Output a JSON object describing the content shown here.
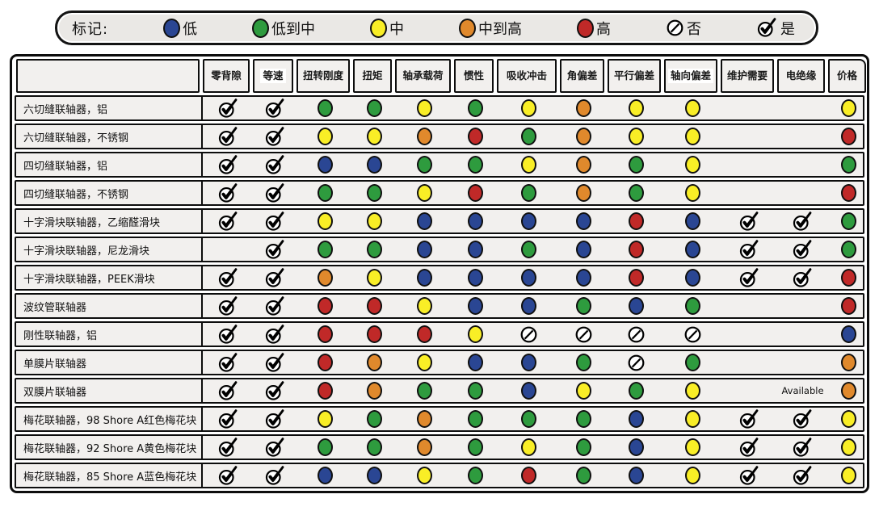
{
  "legend": {
    "title": "标记:",
    "items": [
      {
        "code": "low",
        "label": "低"
      },
      {
        "code": "low_med",
        "label": "低到中"
      },
      {
        "code": "med",
        "label": "中"
      },
      {
        "code": "med_high",
        "label": "中到高"
      },
      {
        "code": "high",
        "label": "高"
      },
      {
        "code": "no",
        "label": "否"
      },
      {
        "code": "yes",
        "label": "是"
      }
    ]
  },
  "colors": {
    "low": "#2a4693",
    "low_med": "#2e9b3e",
    "med": "#f9ee26",
    "med_high": "#e0892c",
    "high": "#c02928",
    "cell_bg": "#f2f0ee",
    "legend_bg": "#eae8e5",
    "border": "#000000"
  },
  "chart_data": {
    "type": "table",
    "value_legend": {
      "low": "低",
      "low_med": "低到中",
      "med": "中",
      "med_high": "中到高",
      "high": "高",
      "no": "否",
      "yes": "是"
    },
    "available_label": "Available",
    "columns": [
      {
        "label": "零背隙",
        "highlighted": false
      },
      {
        "label": "等速",
        "highlighted": true
      },
      {
        "label": "扭转刚度",
        "highlighted": false
      },
      {
        "label": "扭矩",
        "highlighted": false
      },
      {
        "label": "轴承载荷",
        "highlighted": false
      },
      {
        "label": "惯性",
        "highlighted": false
      },
      {
        "label": "吸收冲击",
        "highlighted": false
      },
      {
        "label": "角偏差",
        "highlighted": false
      },
      {
        "label": "平行偏差",
        "highlighted": false
      },
      {
        "label": "轴向偏差",
        "highlighted": true
      },
      {
        "label": "维护需要",
        "highlighted": false
      },
      {
        "label": "电绝缘",
        "highlighted": false
      },
      {
        "label": "价格",
        "highlighted": false
      }
    ],
    "rows": [
      {
        "label": "六切缝联轴器，铝",
        "values": [
          "yes",
          "yes",
          "low_med",
          "low_med",
          "med",
          "low_med",
          "med",
          "med_high",
          "med",
          "med",
          "",
          "",
          "med"
        ]
      },
      {
        "label": "六切缝联轴器，不锈钢",
        "values": [
          "yes",
          "yes",
          "med",
          "med",
          "med_high",
          "high",
          "low_med",
          "med_high",
          "med",
          "med",
          "",
          "",
          "high"
        ]
      },
      {
        "label": "四切缝联轴器，铝",
        "values": [
          "yes",
          "yes",
          "low",
          "low",
          "low_med",
          "low_med",
          "med",
          "med_high",
          "low_med",
          "med",
          "",
          "",
          "low_med"
        ]
      },
      {
        "label": "四切缝联轴器，不锈钢",
        "values": [
          "yes",
          "yes",
          "low_med",
          "low_med",
          "med",
          "high",
          "low_med",
          "med_high",
          "low_med",
          "med",
          "",
          "",
          "high"
        ]
      },
      {
        "label": "十字滑块联轴器，乙缩醛滑块",
        "values": [
          "yes",
          "yes",
          "med",
          "med",
          "low",
          "low",
          "low",
          "low",
          "high",
          "low",
          "yes",
          "yes",
          "low_med"
        ]
      },
      {
        "label": "十字滑块联轴器，尼龙滑块",
        "values": [
          "",
          "yes",
          "low_med",
          "low_med",
          "low",
          "low",
          "low_med",
          "low",
          "high",
          "low",
          "yes",
          "yes",
          "low_med"
        ]
      },
      {
        "label": "十字滑块联轴器，PEEK滑块",
        "values": [
          "yes",
          "yes",
          "med_high",
          "med",
          "low",
          "low",
          "low",
          "low",
          "high",
          "low",
          "yes",
          "yes",
          "high"
        ]
      },
      {
        "label": "波纹管联轴器",
        "values": [
          "yes",
          "yes",
          "high",
          "high",
          "med",
          "low",
          "low",
          "low_med",
          "low",
          "low_med",
          "",
          "",
          "high"
        ]
      },
      {
        "label": "刚性联轴器，铝",
        "values": [
          "yes",
          "yes",
          "high",
          "high",
          "high",
          "med",
          "no",
          "no",
          "no",
          "no",
          "",
          "",
          "low"
        ]
      },
      {
        "label": "单膜片联轴器",
        "values": [
          "yes",
          "yes",
          "high",
          "med_high",
          "med",
          "low",
          "low",
          "low_med",
          "no",
          "low_med",
          "",
          "",
          "med_high"
        ]
      },
      {
        "label": "双膜片联轴器",
        "values": [
          "yes",
          "yes",
          "high",
          "med_high",
          "low_med",
          "low_med",
          "low",
          "med",
          "low_med",
          "med",
          "",
          "available",
          "med_high"
        ]
      },
      {
        "label": "梅花联轴器，98 Shore A红色梅花块",
        "values": [
          "yes",
          "yes",
          "med",
          "low_med",
          "med_high",
          "low_med",
          "low_med",
          "low_med",
          "low",
          "med",
          "yes",
          "yes",
          "med"
        ]
      },
      {
        "label": "梅花联轴器，92 Shore A黄色梅花块",
        "values": [
          "yes",
          "yes",
          "low_med",
          "low_med",
          "med_high",
          "low_med",
          "med",
          "low_med",
          "low",
          "med",
          "yes",
          "yes",
          "med"
        ]
      },
      {
        "label": "梅花联轴器，85 Shore A蓝色梅花块",
        "values": [
          "yes",
          "yes",
          "low",
          "low",
          "med",
          "low_med",
          "high",
          "low_med",
          "low",
          "med",
          "yes",
          "yes",
          "med"
        ]
      }
    ]
  }
}
